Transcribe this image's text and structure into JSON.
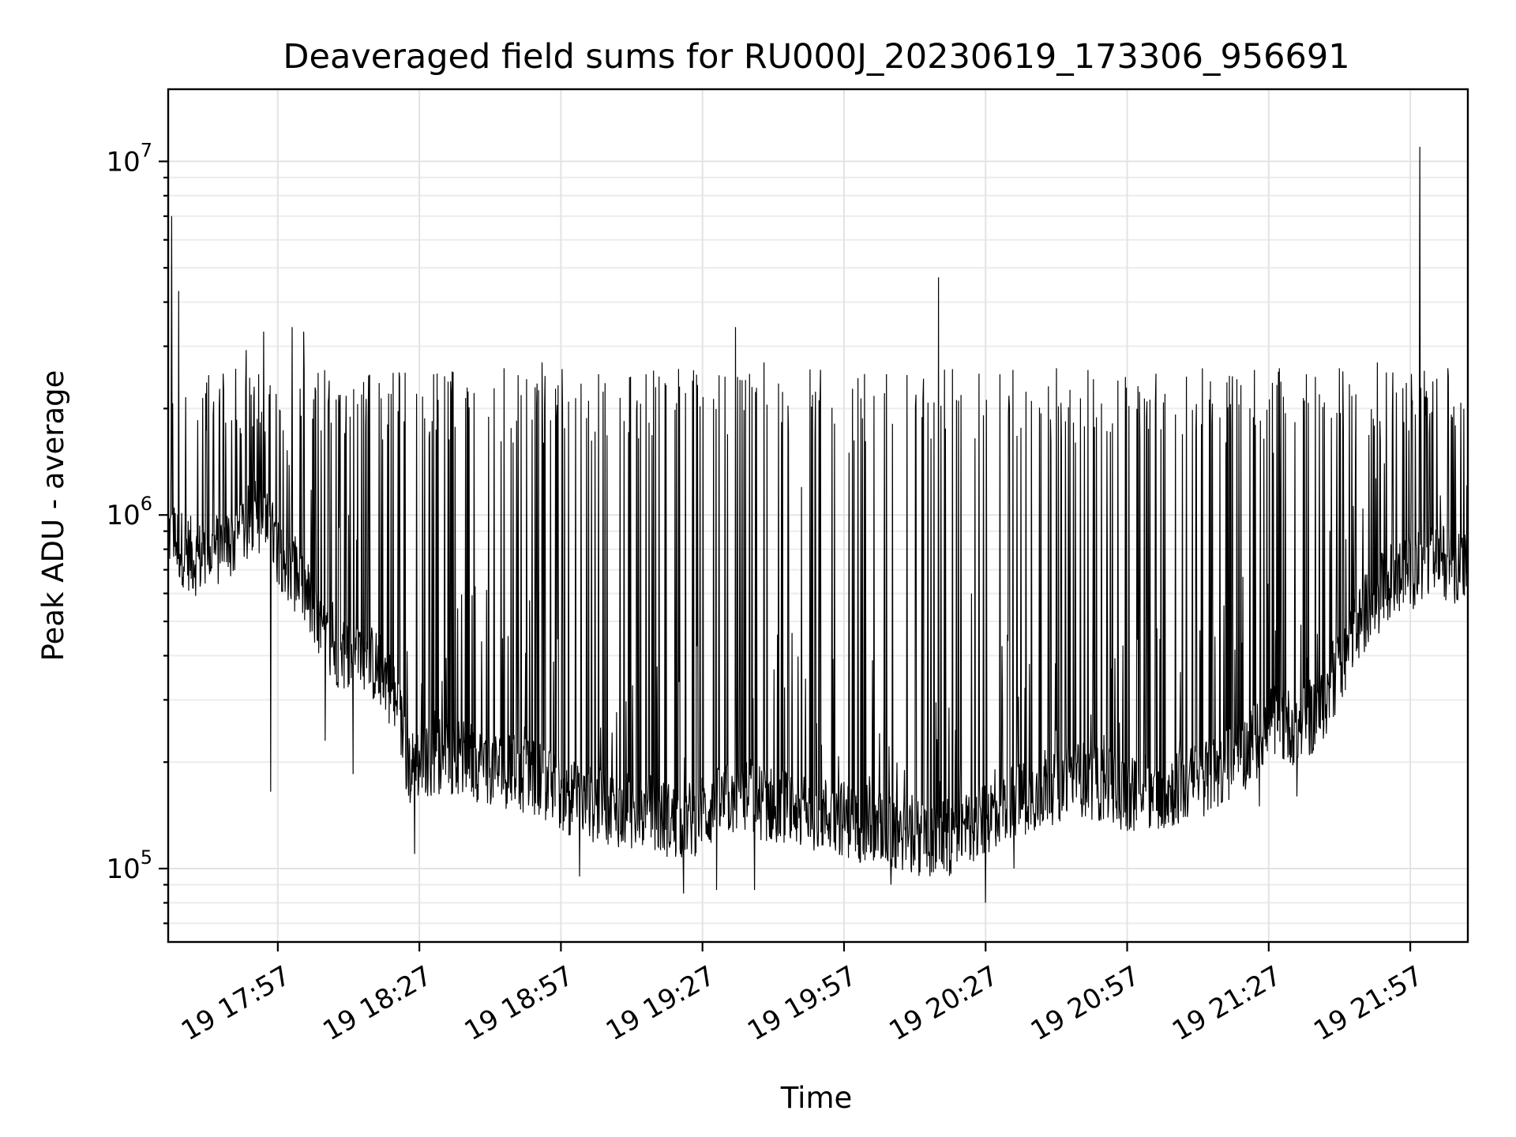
{
  "chart_data": {
    "type": "line",
    "title": "Deaveraged field sums for RU000J_20230619_173306_956691",
    "xlabel": "Time",
    "ylabel": "Peak ADU - average",
    "yscale": "log",
    "ylim": [
      62000,
      16000000
    ],
    "xlim": [
      "2023-06-19 17:33:46",
      "2023-06-19 22:09:12"
    ],
    "x_ticks": [
      {
        "time": "2023-06-19 17:57",
        "label": "19 17:57"
      },
      {
        "time": "2023-06-19 18:27",
        "label": "19 18:27"
      },
      {
        "time": "2023-06-19 18:57",
        "label": "19 18:57"
      },
      {
        "time": "2023-06-19 19:27",
        "label": "19 19:27"
      },
      {
        "time": "2023-06-19 19:57",
        "label": "19 19:57"
      },
      {
        "time": "2023-06-19 20:27",
        "label": "19 20:27"
      },
      {
        "time": "2023-06-19 20:57",
        "label": "19 20:57"
      },
      {
        "time": "2023-06-19 21:27",
        "label": "19 21:27"
      },
      {
        "time": "2023-06-19 21:57",
        "label": "19 21:57"
      }
    ],
    "y_ticks": [
      {
        "value": 100000,
        "base": "10",
        "exp": "5"
      },
      {
        "value": 1000000,
        "base": "10",
        "exp": "6"
      },
      {
        "value": 10000000,
        "base": "10",
        "exp": "7"
      }
    ],
    "grid": true,
    "series_color": "#000000",
    "series": [
      {
        "x": [
          "2023-06-19 17:33:46",
          "2023-06-19 17:35:00",
          "2023-06-19 17:37:00",
          "2023-06-19 17:40:00",
          "2023-06-19 17:44:00",
          "2023-06-19 17:48:00",
          "2023-06-19 17:52:00",
          "2023-06-19 17:55:00",
          "2023-06-19 18:00:00",
          "2023-06-19 18:03:00",
          "2023-06-19 18:06:00",
          "2023-06-19 18:09:00",
          "2023-06-19 18:13:00",
          "2023-06-19 18:17:00",
          "2023-06-19 18:20:00",
          "2023-06-19 18:23:00",
          "2023-06-19 18:25:00",
          "2023-06-19 18:27:00",
          "2023-06-19 18:32:00",
          "2023-06-19 18:38:00",
          "2023-06-19 18:45:00",
          "2023-06-19 18:52:00",
          "2023-06-19 18:58:00",
          "2023-06-19 19:05:00",
          "2023-06-19 19:12:00",
          "2023-06-19 19:18:00",
          "2023-06-19 19:22:00",
          "2023-06-19 19:26:00",
          "2023-06-19 19:30:00",
          "2023-06-19 19:34:00",
          "2023-06-19 19:38:00",
          "2023-06-19 19:44:00",
          "2023-06-19 19:50:00",
          "2023-06-19 19:56:00",
          "2023-06-19 20:03:00",
          "2023-06-19 20:10:00",
          "2023-06-19 20:16:00",
          "2023-06-19 20:22:00",
          "2023-06-19 20:26:00",
          "2023-06-19 20:30:00",
          "2023-06-19 20:35:00",
          "2023-06-19 20:41:00",
          "2023-06-19 20:47:00",
          "2023-06-19 20:53:00",
          "2023-06-19 20:59:00",
          "2023-06-19 21:05:00",
          "2023-06-19 21:11:00",
          "2023-06-19 21:17:00",
          "2023-06-19 21:23:00",
          "2023-06-19 21:28:00",
          "2023-06-19 21:33:00",
          "2023-06-19 21:38:00",
          "2023-06-19 21:43:00",
          "2023-06-19 21:48:00",
          "2023-06-19 21:53:00",
          "2023-06-19 21:58:00",
          "2023-06-19 22:03:00",
          "2023-06-19 22:09:12"
        ],
        "y": [
          900000,
          850000,
          800000,
          750000,
          800000,
          850000,
          1000000,
          900000,
          700000,
          600000,
          450000,
          420000,
          400000,
          380000,
          350000,
          260000,
          190000,
          200000,
          210000,
          200000,
          190000,
          180000,
          160000,
          150000,
          145000,
          140000,
          135000,
          140000,
          150000,
          160000,
          155000,
          150000,
          145000,
          140000,
          130000,
          125000,
          120000,
          125000,
          135000,
          150000,
          160000,
          170000,
          180000,
          170000,
          160000,
          165000,
          175000,
          190000,
          220000,
          260000,
          250000,
          280000,
          400000,
          550000,
          650000,
          700000,
          750000,
          700000
        ],
        "spike_peaks": [
          {
            "time": "2023-06-19 17:34:30",
            "value": 7000000
          },
          {
            "time": "2023-06-19 17:36:00",
            "value": 4300000
          },
          {
            "time": "2023-06-19 17:54:00",
            "value": 3300000
          },
          {
            "time": "2023-06-19 18:00:00",
            "value": 3400000
          },
          {
            "time": "2023-06-19 18:02:30",
            "value": 3300000
          },
          {
            "time": "2023-06-19 18:12:00",
            "value": 1000000
          },
          {
            "time": "2023-06-19 18:21:00",
            "value": 2200000
          },
          {
            "time": "2023-06-19 18:30:00",
            "value": 2500000
          },
          {
            "time": "2023-06-19 18:45:00",
            "value": 2600000
          },
          {
            "time": "2023-06-19 18:53:00",
            "value": 2700000
          },
          {
            "time": "2023-06-19 19:05:00",
            "value": 2500000
          },
          {
            "time": "2023-06-19 19:15:00",
            "value": 2500000
          },
          {
            "time": "2023-06-19 19:34:00",
            "value": 3400000
          },
          {
            "time": "2023-06-19 19:40:00",
            "value": 2700000
          },
          {
            "time": "2023-06-19 19:48:00",
            "value": 1200000
          },
          {
            "time": "2023-06-19 19:58:00",
            "value": 1500000
          },
          {
            "time": "2023-06-19 20:06:00",
            "value": 2500000
          },
          {
            "time": "2023-06-19 20:17:00",
            "value": 4700000
          },
          {
            "time": "2023-06-19 20:24:00",
            "value": 600000
          },
          {
            "time": "2023-06-19 20:30:00",
            "value": 2500000
          },
          {
            "time": "2023-06-19 20:42:00",
            "value": 2600000
          },
          {
            "time": "2023-06-19 20:55:00",
            "value": 2400000
          },
          {
            "time": "2023-06-19 21:05:00",
            "value": 2200000
          },
          {
            "time": "2023-06-19 21:15:00",
            "value": 1800000
          },
          {
            "time": "2023-06-19 21:28:00",
            "value": 1500000
          },
          {
            "time": "2023-06-19 21:35:00",
            "value": 2500000
          },
          {
            "time": "2023-06-19 21:42:00",
            "value": 2600000
          },
          {
            "time": "2023-06-19 21:50:00",
            "value": 2700000
          },
          {
            "time": "2023-06-19 21:59:00",
            "value": 11000000
          },
          {
            "time": "2023-06-19 22:05:00",
            "value": 2600000
          }
        ],
        "dip_minima": [
          {
            "time": "2023-06-19 17:55:30",
            "value": 165000
          },
          {
            "time": "2023-06-19 18:07:00",
            "value": 230000
          },
          {
            "time": "2023-06-19 18:13:00",
            "value": 185000
          },
          {
            "time": "2023-06-19 18:26:00",
            "value": 110000
          },
          {
            "time": "2023-06-19 19:01:00",
            "value": 95000
          },
          {
            "time": "2023-06-19 19:23:00",
            "value": 85000
          },
          {
            "time": "2023-06-19 19:30:00",
            "value": 87000
          },
          {
            "time": "2023-06-19 19:38:00",
            "value": 87000
          },
          {
            "time": "2023-06-19 20:07:00",
            "value": 90000
          },
          {
            "time": "2023-06-19 20:27:00",
            "value": 80000
          },
          {
            "time": "2023-06-19 20:33:00",
            "value": 100000
          },
          {
            "time": "2023-06-19 21:25:00",
            "value": 150000
          },
          {
            "time": "2023-06-19 21:33:00",
            "value": 160000
          }
        ]
      }
    ]
  }
}
